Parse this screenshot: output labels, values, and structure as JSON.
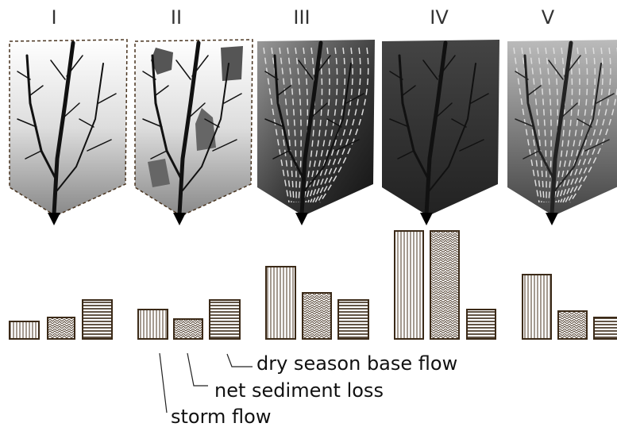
{
  "stages": [
    "I",
    "II",
    "III",
    "IV",
    "V"
  ],
  "legend": {
    "base_flow": "dry season base flow",
    "sediment": "net sediment loss",
    "storm": "storm flow"
  }
}
